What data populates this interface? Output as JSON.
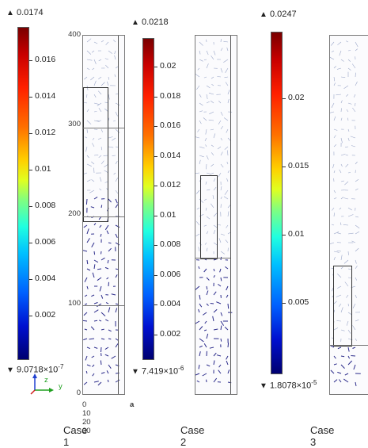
{
  "panels": [
    {
      "max_label": "0.0174",
      "min_label": "9.0718×10",
      "min_exp": "-7",
      "ticks": [
        "0.016",
        "0.014",
        "0.012",
        "0.01",
        "0.008",
        "0.006",
        "0.004",
        "0.002"
      ],
      "caption": "Case 1"
    },
    {
      "max_label": "0.0218",
      "min_label": "7.419×10",
      "min_exp": "-6",
      "ticks": [
        "0.02",
        "0.018",
        "0.016",
        "0.014",
        "0.012",
        "0.01",
        "0.008",
        "0.006",
        "0.004",
        "0.002"
      ],
      "caption": "Case 2"
    },
    {
      "max_label": "0.0247",
      "min_label": "1.8078×10",
      "min_exp": "-5",
      "ticks": [
        "0.02",
        "0.015",
        "0.01",
        "0.005"
      ],
      "caption": "Case 3"
    }
  ],
  "axis": {
    "y_ticks": [
      "400",
      "300",
      "200",
      "100",
      "0"
    ],
    "x_label": "0 10 20 30",
    "unit": "a",
    "triad_y": "z",
    "triad_x": "y"
  },
  "symbols": {
    "max": "▲",
    "min": "▼"
  },
  "colors": {
    "arrow": "#2a2a8a",
    "colormap_top": "#7a0000",
    "colormap_bottom": "#000070"
  }
}
